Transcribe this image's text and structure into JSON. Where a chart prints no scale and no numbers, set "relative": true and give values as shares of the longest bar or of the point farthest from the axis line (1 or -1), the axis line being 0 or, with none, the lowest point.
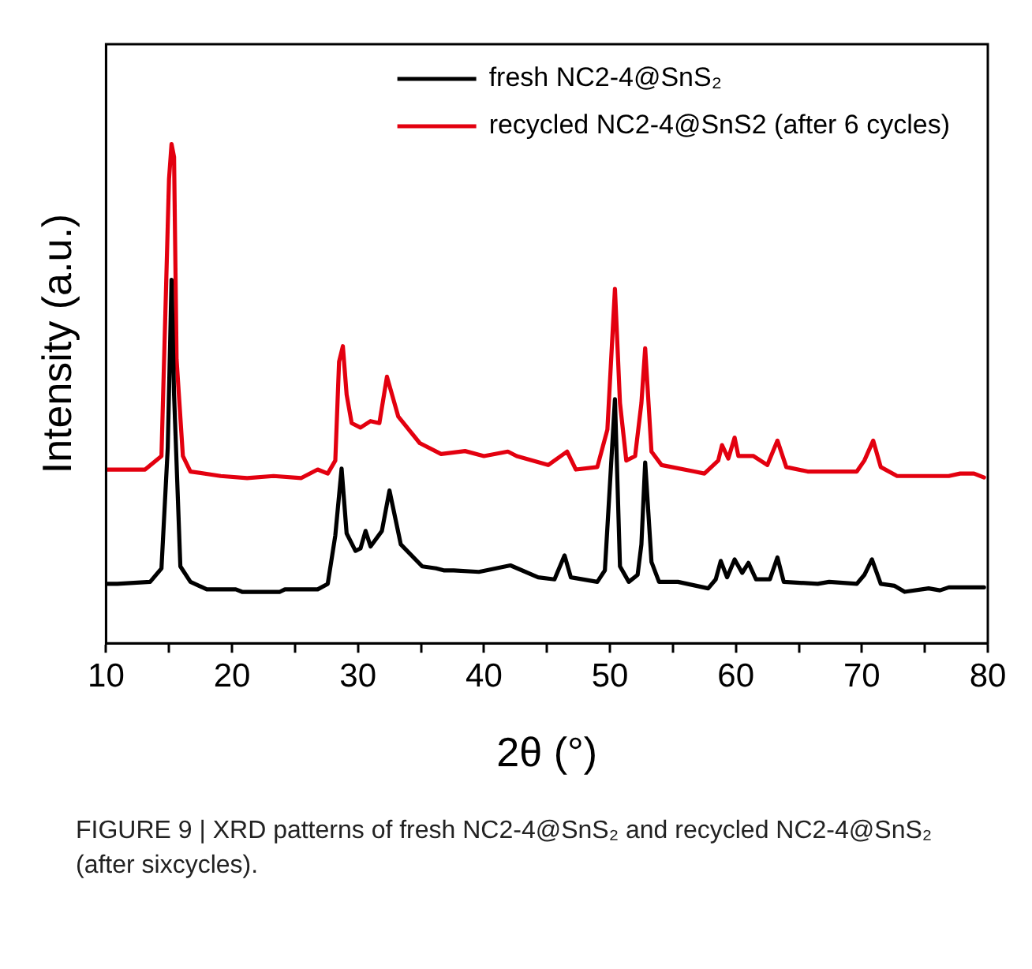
{
  "chart_data": {
    "type": "line",
    "relative": true,
    "xlabel": "2θ (°)",
    "ylabel": "Intensity (a.u.)",
    "xlim": [
      10,
      80
    ],
    "xticks": [
      10,
      {
        "value": 15,
        "label": null
      },
      20,
      {
        "value": 25,
        "label": null
      },
      30,
      {
        "value": 35,
        "label": null
      },
      40,
      {
        "value": 45,
        "label": null
      },
      50,
      {
        "value": 55,
        "label": null
      },
      60,
      {
        "value": 65,
        "label": null
      },
      70,
      {
        "value": 75,
        "label": null
      },
      80
    ],
    "grid": false,
    "legend": "top right",
    "marker": "none",
    "line_style": "solid",
    "annotations": [
      "FIGURE 9 | XRD patterns of fresh NC2-4@SnS₂ and recycled NC2-4@SnS₂ (after sixcycles)."
    ],
    "series": [
      {
        "name": "fresh NC2-4@SnS₂",
        "color": "#000000",
        "x": [
          10,
          10.9,
          13.5,
          14.4,
          14.9,
          15.2,
          15.4,
          15.9,
          16.7,
          18,
          20.3,
          20.8,
          23.8,
          24.2,
          26.8,
          27.6,
          28.2,
          28.7,
          29.1,
          29.8,
          30.2,
          30.6,
          31,
          31.9,
          32.5,
          33.4,
          35.1,
          36.2,
          36.8,
          37.6,
          39.6,
          42.1,
          44.3,
          45.6,
          46.4,
          46.9,
          49,
          49.6,
          50.4,
          50.8,
          51.5,
          52.2,
          52.5,
          52.8,
          53.3,
          53.9,
          55.4,
          57.8,
          58.4,
          58.8,
          59.3,
          59.9,
          60.5,
          61,
          61.6,
          62.7,
          63.3,
          63.8,
          66.5,
          67.4,
          69.6,
          70.2,
          70.8,
          71.5,
          72.6,
          73.4,
          75.3,
          76.2,
          76.9,
          79.7
        ],
        "values": [
          0.119,
          0.119,
          0.123,
          0.15,
          0.392,
          0.728,
          0.498,
          0.154,
          0.123,
          0.108,
          0.108,
          0.103,
          0.103,
          0.108,
          0.108,
          0.119,
          0.216,
          0.35,
          0.22,
          0.185,
          0.19,
          0.225,
          0.194,
          0.225,
          0.306,
          0.198,
          0.154,
          0.15,
          0.146,
          0.146,
          0.143,
          0.156,
          0.132,
          0.128,
          0.176,
          0.132,
          0.123,
          0.146,
          0.489,
          0.154,
          0.123,
          0.137,
          0.198,
          0.362,
          0.163,
          0.123,
          0.123,
          0.11,
          0.128,
          0.165,
          0.132,
          0.168,
          0.141,
          0.161,
          0.128,
          0.128,
          0.172,
          0.123,
          0.119,
          0.123,
          0.119,
          0.137,
          0.168,
          0.119,
          0.115,
          0.103,
          0.11,
          0.106,
          0.112,
          0.112
        ]
      },
      {
        "name": "recycled NC2-4@SnS2 (after 6 cycles)",
        "color": "#e3000f",
        "x": [
          10,
          13.1,
          14.4,
          15,
          15.2,
          15.4,
          15.6,
          16.1,
          16.7,
          19.1,
          21.2,
          23.3,
          25.5,
          26.8,
          27.6,
          28.2,
          28.5,
          28.8,
          29.1,
          29.5,
          30.2,
          31,
          31.7,
          32.3,
          33.2,
          34.9,
          36.6,
          38.5,
          40,
          41.9,
          42.6,
          45.1,
          46.6,
          47.3,
          49,
          49.8,
          50.4,
          50.8,
          51.3,
          52,
          52.5,
          52.8,
          53.3,
          54.1,
          56.7,
          57.5,
          58.6,
          58.9,
          59.4,
          59.9,
          60.2,
          61.4,
          62.5,
          63.3,
          64,
          65.7,
          69.6,
          70.2,
          70.9,
          71.5,
          72.8,
          76.9,
          77.8,
          78.9,
          79.7
        ],
        "values": [
          0.348,
          0.348,
          0.375,
          0.93,
          1,
          0.974,
          0.569,
          0.375,
          0.344,
          0.335,
          0.331,
          0.335,
          0.331,
          0.348,
          0.34,
          0.366,
          0.564,
          0.595,
          0.498,
          0.441,
          0.432,
          0.445,
          0.441,
          0.534,
          0.454,
          0.401,
          0.379,
          0.385,
          0.375,
          0.384,
          0.375,
          0.357,
          0.384,
          0.348,
          0.353,
          0.428,
          0.71,
          0.481,
          0.366,
          0.375,
          0.481,
          0.591,
          0.384,
          0.357,
          0.344,
          0.34,
          0.366,
          0.397,
          0.37,
          0.412,
          0.375,
          0.375,
          0.357,
          0.406,
          0.353,
          0.344,
          0.344,
          0.366,
          0.406,
          0.353,
          0.335,
          0.335,
          0.34,
          0.34,
          0.332
        ]
      }
    ]
  }
}
